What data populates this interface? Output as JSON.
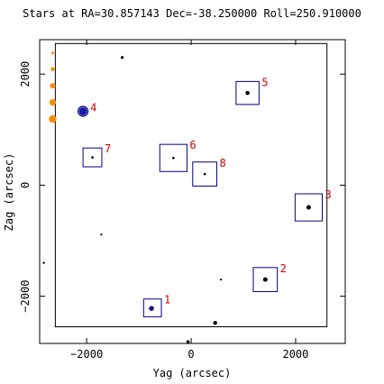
{
  "chart_data": {
    "type": "scatter",
    "title": "Stars at RA=30.857143 Dec=-38.250000 Roll=250.910000",
    "xlabel": "Yag (arcsec)",
    "ylabel": "Zag (arcsec)",
    "xlim": [
      -2900,
      2950
    ],
    "ylim": [
      -2850,
      2620
    ],
    "x_ticks": [
      -2000,
      0,
      2000
    ],
    "y_ticks": [
      -2000,
      0,
      2000
    ],
    "ccd_box": {
      "yag": [
        -2600,
        2600
      ],
      "zag": [
        -2550,
        2550
      ]
    },
    "grid": false,
    "colors": {
      "axes": "#000000",
      "box": "#00008b",
      "label": "#cc0000",
      "fiducial": "#ff8c00"
    },
    "catalog_stars": [
      {
        "yag": -2070,
        "zag": 1330,
        "size": 4.5,
        "color": "#1a1aa6"
      },
      {
        "yag": -1320,
        "zag": 2300,
        "size": 1.6,
        "color": "#000000"
      },
      {
        "yag": -1720,
        "zag": -890,
        "size": 1.1,
        "color": "#000000"
      },
      {
        "yag": 570,
        "zag": -1700,
        "size": 1.1,
        "color": "#000000"
      },
      {
        "yag": 460,
        "zag": -2480,
        "size": 2.2,
        "color": "#000000"
      },
      {
        "yag": -60,
        "zag": -2820,
        "size": 1.8,
        "color": "#000000"
      },
      {
        "yag": -2820,
        "zag": -1400,
        "size": 1.2,
        "color": "#000000"
      },
      {
        "yag": 2250,
        "zag": -400,
        "size": 2.5,
        "color": "#000000"
      },
      {
        "yag": 1420,
        "zag": -1700,
        "size": 2.5,
        "color": "#000000"
      },
      {
        "yag": 1080,
        "zag": 1660,
        "size": 2.3,
        "color": "#000000"
      },
      {
        "yag": -760,
        "zag": -2220,
        "size": 2.8,
        "color": "#1a1aa6"
      }
    ],
    "fiducials": [
      {
        "yag": -2650,
        "zag": 2380,
        "size": 1.5
      },
      {
        "yag": -2650,
        "zag": 2090,
        "size": 2.2
      },
      {
        "yag": -2650,
        "zag": 1790,
        "size": 3.0
      },
      {
        "yag": -2650,
        "zag": 1490,
        "size": 3.6
      },
      {
        "yag": -2650,
        "zag": 1190,
        "size": 4.2
      }
    ],
    "selected_stars": [
      {
        "id": "1",
        "yag": -740,
        "zag": -2210,
        "box": 170
      },
      {
        "id": "2",
        "yag": 1420,
        "zag": -1700,
        "box": 230
      },
      {
        "id": "3",
        "yag": 2250,
        "zag": -400,
        "box": 260
      },
      {
        "id": "4",
        "yag": -2070,
        "zag": 1330,
        "box": 0
      },
      {
        "id": "5",
        "yag": 1080,
        "zag": 1660,
        "box": 220
      },
      {
        "id": "6",
        "yag": -340,
        "zag": 490,
        "box": 260
      },
      {
        "id": "7",
        "yag": -1890,
        "zag": 500,
        "box": 180
      },
      {
        "id": "8",
        "yag": 260,
        "zag": 200,
        "box": 230
      }
    ]
  }
}
